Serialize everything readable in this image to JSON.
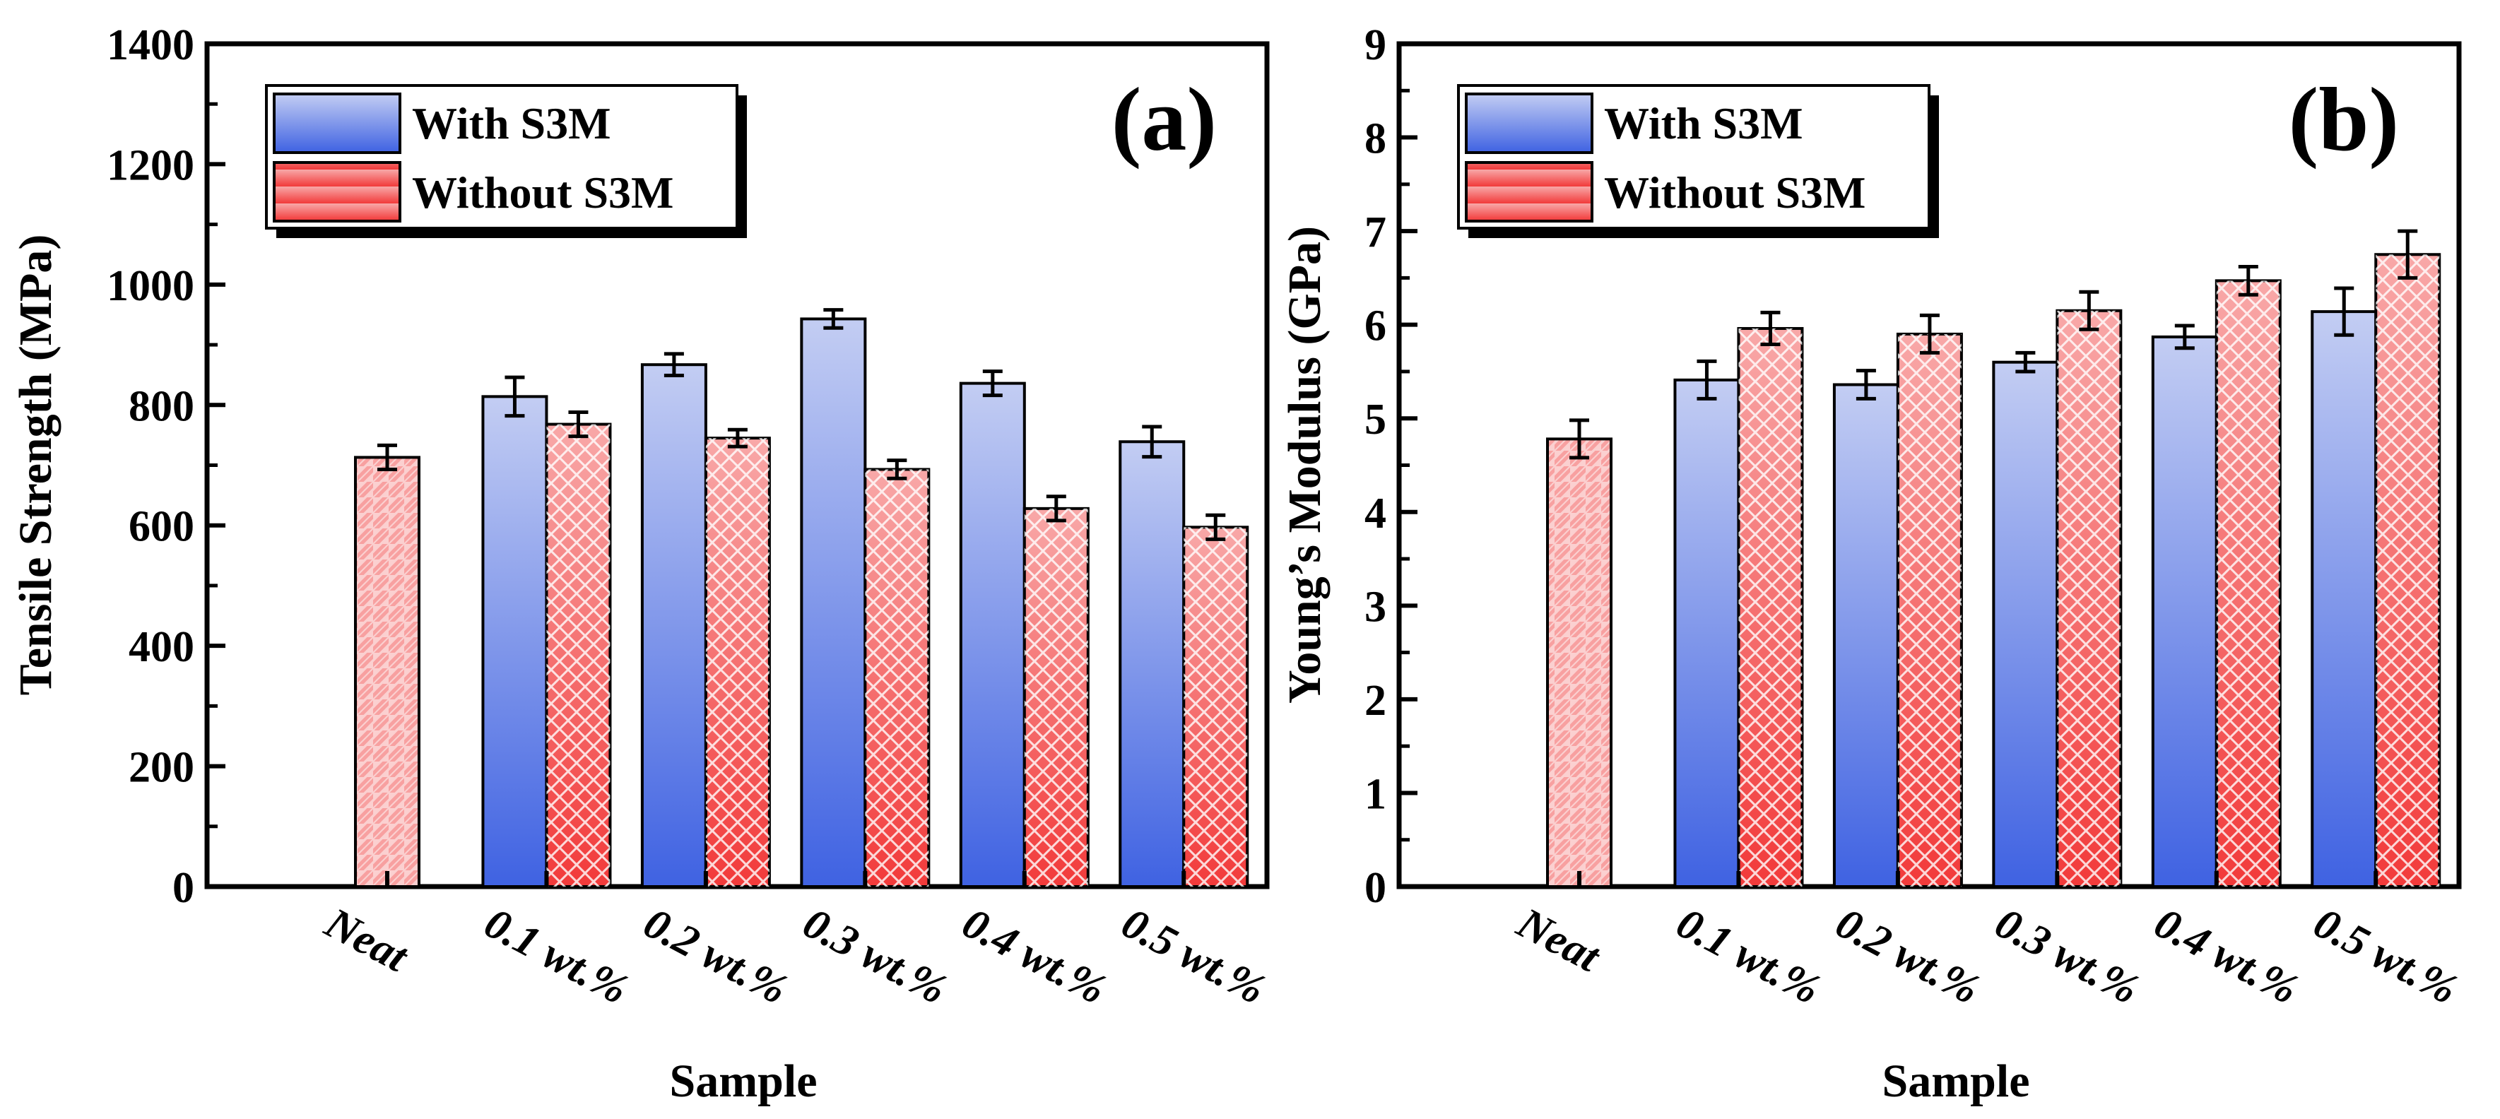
{
  "chart_data": [
    {
      "type": "bar",
      "panel_label": "(a)",
      "xlabel": "Sample",
      "ylabel": "Tensile Strength (MPa)",
      "ylim": [
        0,
        1400
      ],
      "yticks": [
        "0",
        "200",
        "400",
        "600",
        "800",
        "1000",
        "1200",
        "1400"
      ],
      "categories": [
        "Neat",
        "0.1  wt.%",
        "0.2 wt.%",
        "0.3 wt.%",
        "0.4 wt.%",
        "0.5 wt.%"
      ],
      "legend_position": "top-left",
      "neat": {
        "value": 713,
        "error": 20
      },
      "series": [
        {
          "name": "With S3M",
          "values": [
            null,
            814,
            867,
            943,
            836,
            739
          ],
          "errors": [
            null,
            32,
            18,
            15,
            20,
            25
          ]
        },
        {
          "name": "Without S3M",
          "values": [
            null,
            768,
            745,
            693,
            628,
            597
          ],
          "errors": [
            null,
            20,
            14,
            15,
            20,
            20
          ]
        }
      ]
    },
    {
      "type": "bar",
      "panel_label": "(b)",
      "xlabel": "Sample",
      "ylabel": "Young’s Modulus (GPa)",
      "ylim": [
        0,
        9
      ],
      "yticks": [
        "0",
        "1",
        "2",
        "3",
        "4",
        "5",
        "6",
        "7",
        "8",
        "9"
      ],
      "categories": [
        "Neat",
        "0.1  wt.%",
        "0.2 wt.%",
        "0.3 wt.%",
        "0.4 wt.%",
        "0.5 wt.%"
      ],
      "legend_position": "top-left",
      "neat": {
        "value": 4.78,
        "error": 0.2
      },
      "series": [
        {
          "name": "With S3M",
          "values": [
            null,
            5.41,
            5.36,
            5.6,
            5.87,
            6.14
          ],
          "errors": [
            null,
            0.2,
            0.15,
            0.1,
            0.12,
            0.25
          ]
        },
        {
          "name": "Without S3M",
          "values": [
            null,
            5.96,
            5.9,
            6.15,
            6.47,
            6.75
          ],
          "errors": [
            null,
            0.17,
            0.2,
            0.2,
            0.15,
            0.25
          ]
        }
      ]
    }
  ],
  "colors": {
    "with_top": "#c3cdf3",
    "with_bottom": "#3f62e2",
    "without_top": "#f8a8a8",
    "without_bottom": "#f23a3a",
    "neat_fill": "#fbd0d0",
    "neat_hatch": "#f8a0a0"
  }
}
